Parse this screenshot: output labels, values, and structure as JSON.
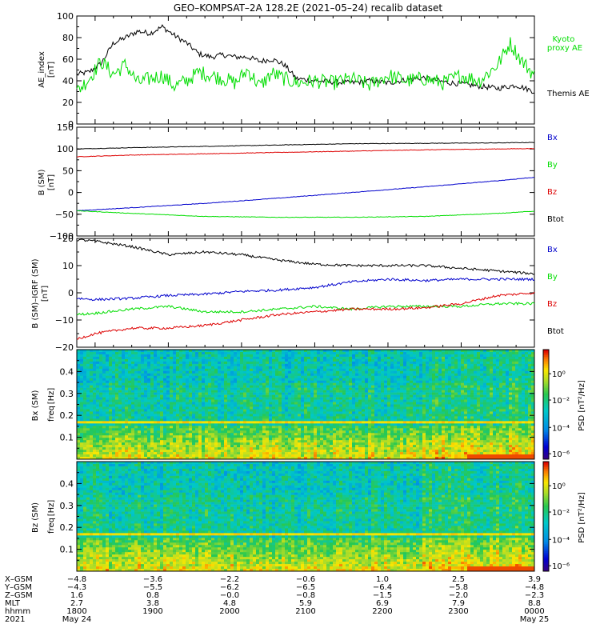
{
  "chart_data": {
    "title": "GEO–KOMPSAT–2A 128.2E (2021–05–24) recalib dataset",
    "x_time_range": [
      "2021-05-24 17:45",
      "2021-05-25 00:00"
    ],
    "panels": [
      {
        "type": "line",
        "ylabel": "AE_index",
        "yunit": "[nT]",
        "ylim": [
          0,
          100
        ],
        "yticks": [
          "0",
          "20",
          "40",
          "60",
          "80",
          "100"
        ],
        "legend": [
          "Kyoto proxy AE",
          "Themis AE"
        ],
        "series": [
          {
            "name": "Themis AE",
            "color": "#000000",
            "x": [
              "17:45",
              "17:55",
              "18:05",
              "18:15",
              "18:25",
              "18:35",
              "18:45",
              "18:55",
              "19:05",
              "19:15",
              "19:25",
              "19:35",
              "19:45",
              "19:55",
              "20:05",
              "20:15",
              "20:25",
              "20:35",
              "20:45",
              "21:00",
              "21:15",
              "21:30",
              "21:45",
              "22:00",
              "22:15",
              "22:30",
              "22:45",
              "23:00",
              "23:15",
              "23:30",
              "23:45",
              "24:00"
            ],
            "values": [
              46,
              48,
              56,
              75,
              80,
              86,
              84,
              90,
              82,
              75,
              65,
              62,
              64,
              62,
              62,
              58,
              60,
              55,
              42,
              40,
              39,
              38,
              40,
              38,
              41,
              43,
              39,
              37,
              35,
              33,
              36,
              30
            ]
          },
          {
            "name": "Kyoto proxy AE",
            "color": "#00dd00",
            "x": [
              "17:45",
              "17:55",
              "18:05",
              "18:15",
              "18:25",
              "18:35",
              "18:45",
              "18:55",
              "19:05",
              "19:15",
              "19:25",
              "19:35",
              "19:45",
              "19:55",
              "20:05",
              "20:15",
              "20:25",
              "20:35",
              "20:45",
              "21:00",
              "21:15",
              "21:30",
              "21:45",
              "22:00",
              "22:15",
              "22:30",
              "22:45",
              "23:00",
              "23:15",
              "23:30",
              "23:40",
              "23:50",
              "24:00"
            ],
            "values": [
              30,
              42,
              58,
              46,
              55,
              38,
              42,
              45,
              35,
              40,
              48,
              45,
              42,
              38,
              50,
              35,
              47,
              42,
              38,
              40,
              38,
              42,
              36,
              45,
              40,
              42,
              38,
              45,
              40,
              55,
              75,
              58,
              45
            ]
          }
        ]
      },
      {
        "type": "line",
        "ylabel": "B (SM)",
        "yunit": "[nT]",
        "ylim": [
          -100,
          150
        ],
        "yticks": [
          "−100",
          "−50",
          "0",
          "50",
          "100",
          "150"
        ],
        "legend": [
          "Bx",
          "By",
          "Bz",
          "Btot"
        ],
        "series": [
          {
            "name": "Btot",
            "color": "#000000",
            "x": [
              "17:45",
              "18:30",
              "19:30",
              "20:30",
              "21:30",
              "22:30",
              "23:30",
              "24:00"
            ],
            "values": [
              100,
              103,
              106,
              109,
              112,
              113,
              114,
              115
            ]
          },
          {
            "name": "Bz",
            "color": "#dd0000",
            "x": [
              "17:45",
              "18:30",
              "19:30",
              "20:30",
              "21:30",
              "22:30",
              "23:30",
              "24:00"
            ],
            "values": [
              82,
              86,
              89,
              92,
              95,
              98,
              100,
              101
            ]
          },
          {
            "name": "Bx",
            "color": "#0000cc",
            "x": [
              "17:45",
              "18:30",
              "19:30",
              "20:30",
              "21:30",
              "22:30",
              "23:30",
              "24:00"
            ],
            "values": [
              -42,
              -35,
              -25,
              -13,
              0,
              13,
              27,
              35
            ]
          },
          {
            "name": "By",
            "color": "#00dd00",
            "x": [
              "17:45",
              "18:30",
              "19:30",
              "20:30",
              "21:30",
              "22:30",
              "23:30",
              "24:00"
            ],
            "values": [
              -42,
              -48,
              -55,
              -57,
              -57,
              -55,
              -48,
              -43
            ]
          }
        ]
      },
      {
        "type": "line",
        "ylabel": "B (SM)–IGRF (SM)",
        "yunit": "[nT]",
        "ylim": [
          -20,
          20
        ],
        "yticks": [
          "−20",
          "−10",
          "0",
          "10",
          "20"
        ],
        "legend": [
          "Bx",
          "By",
          "Bz",
          "Btot"
        ],
        "series": [
          {
            "name": "Btot",
            "color": "#000000",
            "x": [
              "17:45",
              "18:00",
              "18:30",
              "19:00",
              "19:30",
              "20:00",
              "20:30",
              "21:00",
              "21:30",
              "22:00",
              "22:30",
              "23:00",
              "23:30",
              "24:00"
            ],
            "values": [
              19.5,
              19,
              17,
              14,
              15,
              14,
              12,
              10.5,
              10,
              10,
              10,
              9,
              8,
              7
            ]
          },
          {
            "name": "Bx",
            "color": "#0000cc",
            "x": [
              "17:45",
              "18:00",
              "18:30",
              "19:00",
              "19:30",
              "20:00",
              "20:30",
              "21:00",
              "21:30",
              "22:00",
              "22:30",
              "23:00",
              "23:30",
              "24:00"
            ],
            "values": [
              -2,
              -2.5,
              -2,
              -1,
              -0.5,
              0.5,
              1,
              2,
              4,
              5,
              4.5,
              5,
              5,
              5
            ]
          },
          {
            "name": "By",
            "color": "#00dd00",
            "x": [
              "17:45",
              "18:00",
              "18:30",
              "19:00",
              "19:30",
              "20:00",
              "20:30",
              "21:00",
              "21:30",
              "22:00",
              "22:30",
              "23:00",
              "23:30",
              "24:00"
            ],
            "values": [
              -8,
              -7.5,
              -6,
              -5,
              -7,
              -7,
              -6,
              -5,
              -6,
              -5,
              -5,
              -5,
              -4,
              -4
            ]
          },
          {
            "name": "Bz",
            "color": "#dd0000",
            "x": [
              "17:45",
              "18:00",
              "18:30",
              "19:00",
              "19:30",
              "20:00",
              "20:30",
              "21:00",
              "21:30",
              "22:00",
              "22:30",
              "23:00",
              "23:30",
              "24:00"
            ],
            "values": [
              -17,
              -15,
              -13,
              -13,
              -12,
              -10,
              -8,
              -7,
              -6,
              -6,
              -5.5,
              -4,
              -1,
              0
            ]
          }
        ]
      },
      {
        "type": "heatmap",
        "ylabel": "Bx (SM)",
        "y2label": "freq",
        "yunit": "[Hz]",
        "ylim": [
          0,
          0.5
        ],
        "yticks": [
          "0.1",
          "0.2",
          "0.3",
          "0.4"
        ],
        "colorbar_label": "PSD [nT²/Hz]",
        "colorbar_ticks": [
          "10⁰",
          "10⁻²",
          "10⁻⁴",
          "10⁻⁶"
        ],
        "notable_feature": "Bright yellow/orange band near 0.17 Hz; enhanced power below 0.15 Hz"
      },
      {
        "type": "heatmap",
        "ylabel": "Bz (SM)",
        "y2label": "freq",
        "yunit": "[Hz]",
        "ylim": [
          0,
          0.5
        ],
        "yticks": [
          "0.1",
          "0.2",
          "0.3",
          "0.4"
        ],
        "colorbar_label": "PSD [nT²/Hz]",
        "colorbar_ticks": [
          "10⁰",
          "10⁻²",
          "10⁻⁴",
          "10⁻⁶"
        ],
        "notable_feature": "Bright yellow band near 0.17 Hz; enhanced power below 0.15 Hz"
      }
    ],
    "x_axis_table": {
      "row_labels": [
        "X–GSM",
        "Y–GSM",
        "Z–GSM",
        "MLT",
        "hhmm",
        "2021"
      ],
      "columns": [
        [
          "−4.8",
          "−4.3",
          "1.6",
          "2.7",
          "1800",
          "May 24"
        ],
        [
          "−3.6",
          "−5.5",
          "0.8",
          "3.8",
          "1900",
          ""
        ],
        [
          "−2.2",
          "−6.2",
          "−0.0",
          "4.8",
          "2000",
          ""
        ],
        [
          "−0.6",
          "−6.5",
          "−0.8",
          "5.9",
          "2100",
          ""
        ],
        [
          "1.0",
          "−6.4",
          "−1.5",
          "6.9",
          "2200",
          ""
        ],
        [
          "2.5",
          "−5.8",
          "−2.0",
          "7.9",
          "2300",
          ""
        ],
        [
          "3.9",
          "−4.8",
          "−2.3",
          "8.8",
          "0000",
          "May 25"
        ]
      ]
    }
  }
}
